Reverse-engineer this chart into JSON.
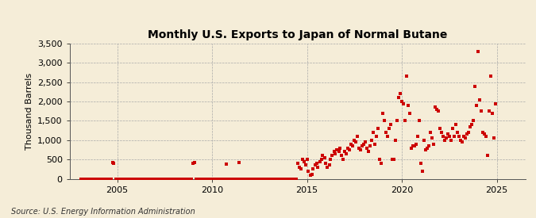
{
  "title": "Monthly U.S. Exports to Japan of Normal Butane",
  "ylabel": "Thousand Barrels",
  "source": "Source: U.S. Energy Information Administration",
  "background_color": "#f5edd8",
  "dot_color": "#cc0000",
  "xlim": [
    2002.5,
    2026.5
  ],
  "ylim": [
    0,
    3500
  ],
  "yticks": [
    0,
    500,
    1000,
    1500,
    2000,
    2500,
    3000,
    3500
  ],
  "xticks": [
    2005,
    2010,
    2015,
    2020,
    2025
  ],
  "data": [
    [
      2003.08,
      0
    ],
    [
      2003.17,
      0
    ],
    [
      2003.25,
      0
    ],
    [
      2003.33,
      0
    ],
    [
      2003.42,
      0
    ],
    [
      2003.5,
      0
    ],
    [
      2003.58,
      0
    ],
    [
      2003.67,
      0
    ],
    [
      2003.75,
      0
    ],
    [
      2003.83,
      0
    ],
    [
      2003.92,
      0
    ],
    [
      2004.0,
      0
    ],
    [
      2004.08,
      0
    ],
    [
      2004.17,
      0
    ],
    [
      2004.25,
      0
    ],
    [
      2004.33,
      0
    ],
    [
      2004.42,
      0
    ],
    [
      2004.5,
      0
    ],
    [
      2004.58,
      0
    ],
    [
      2004.67,
      0
    ],
    [
      2004.75,
      420
    ],
    [
      2004.83,
      400
    ],
    [
      2004.92,
      0
    ],
    [
      2005.0,
      0
    ],
    [
      2005.08,
      0
    ],
    [
      2005.17,
      0
    ],
    [
      2005.25,
      0
    ],
    [
      2005.33,
      0
    ],
    [
      2005.42,
      0
    ],
    [
      2005.5,
      0
    ],
    [
      2005.58,
      0
    ],
    [
      2005.67,
      0
    ],
    [
      2005.75,
      0
    ],
    [
      2005.83,
      0
    ],
    [
      2005.92,
      0
    ],
    [
      2006.0,
      0
    ],
    [
      2006.08,
      0
    ],
    [
      2006.17,
      0
    ],
    [
      2006.25,
      0
    ],
    [
      2006.33,
      0
    ],
    [
      2006.42,
      0
    ],
    [
      2006.5,
      0
    ],
    [
      2006.58,
      0
    ],
    [
      2006.67,
      0
    ],
    [
      2006.75,
      0
    ],
    [
      2006.83,
      0
    ],
    [
      2006.92,
      0
    ],
    [
      2007.0,
      0
    ],
    [
      2007.08,
      0
    ],
    [
      2007.17,
      0
    ],
    [
      2007.25,
      0
    ],
    [
      2007.33,
      0
    ],
    [
      2007.42,
      0
    ],
    [
      2007.5,
      0
    ],
    [
      2007.58,
      0
    ],
    [
      2007.67,
      0
    ],
    [
      2007.75,
      0
    ],
    [
      2007.83,
      0
    ],
    [
      2007.92,
      0
    ],
    [
      2008.0,
      0
    ],
    [
      2008.08,
      0
    ],
    [
      2008.17,
      0
    ],
    [
      2008.25,
      0
    ],
    [
      2008.33,
      0
    ],
    [
      2008.42,
      0
    ],
    [
      2008.5,
      0
    ],
    [
      2008.58,
      0
    ],
    [
      2008.67,
      0
    ],
    [
      2008.75,
      0
    ],
    [
      2008.83,
      0
    ],
    [
      2008.92,
      0
    ],
    [
      2009.0,
      400
    ],
    [
      2009.08,
      420
    ],
    [
      2009.17,
      0
    ],
    [
      2009.25,
      0
    ],
    [
      2009.33,
      0
    ],
    [
      2009.42,
      0
    ],
    [
      2009.5,
      0
    ],
    [
      2009.58,
      0
    ],
    [
      2009.67,
      0
    ],
    [
      2009.75,
      0
    ],
    [
      2009.83,
      0
    ],
    [
      2009.92,
      0
    ],
    [
      2010.0,
      0
    ],
    [
      2010.08,
      0
    ],
    [
      2010.17,
      0
    ],
    [
      2010.25,
      0
    ],
    [
      2010.33,
      0
    ],
    [
      2010.42,
      0
    ],
    [
      2010.5,
      0
    ],
    [
      2010.58,
      0
    ],
    [
      2010.67,
      0
    ],
    [
      2010.75,
      380
    ],
    [
      2010.83,
      0
    ],
    [
      2010.92,
      0
    ],
    [
      2011.0,
      0
    ],
    [
      2011.08,
      0
    ],
    [
      2011.17,
      0
    ],
    [
      2011.25,
      0
    ],
    [
      2011.33,
      0
    ],
    [
      2011.42,
      420
    ],
    [
      2011.5,
      0
    ],
    [
      2011.58,
      0
    ],
    [
      2011.67,
      0
    ],
    [
      2011.75,
      0
    ],
    [
      2011.83,
      0
    ],
    [
      2011.92,
      0
    ],
    [
      2012.0,
      0
    ],
    [
      2012.08,
      0
    ],
    [
      2012.17,
      0
    ],
    [
      2012.25,
      0
    ],
    [
      2012.33,
      0
    ],
    [
      2012.42,
      0
    ],
    [
      2012.5,
      0
    ],
    [
      2012.58,
      0
    ],
    [
      2012.67,
      0
    ],
    [
      2012.75,
      0
    ],
    [
      2012.83,
      0
    ],
    [
      2012.92,
      0
    ],
    [
      2013.0,
      0
    ],
    [
      2013.08,
      0
    ],
    [
      2013.17,
      0
    ],
    [
      2013.25,
      0
    ],
    [
      2013.33,
      0
    ],
    [
      2013.42,
      0
    ],
    [
      2013.5,
      0
    ],
    [
      2013.58,
      0
    ],
    [
      2013.67,
      0
    ],
    [
      2013.75,
      0
    ],
    [
      2013.83,
      0
    ],
    [
      2013.92,
      0
    ],
    [
      2014.08,
      0
    ],
    [
      2014.17,
      0
    ],
    [
      2014.25,
      0
    ],
    [
      2014.33,
      0
    ],
    [
      2014.42,
      0
    ],
    [
      2014.5,
      400
    ],
    [
      2014.58,
      300
    ],
    [
      2014.67,
      250
    ],
    [
      2014.75,
      500
    ],
    [
      2014.83,
      450
    ],
    [
      2014.92,
      350
    ],
    [
      2015.0,
      500
    ],
    [
      2015.08,
      200
    ],
    [
      2015.17,
      100
    ],
    [
      2015.25,
      120
    ],
    [
      2015.33,
      250
    ],
    [
      2015.42,
      350
    ],
    [
      2015.5,
      400
    ],
    [
      2015.58,
      300
    ],
    [
      2015.67,
      450
    ],
    [
      2015.75,
      500
    ],
    [
      2015.83,
      600
    ],
    [
      2015.92,
      550
    ],
    [
      2016.0,
      400
    ],
    [
      2016.08,
      300
    ],
    [
      2016.17,
      350
    ],
    [
      2016.25,
      500
    ],
    [
      2016.33,
      600
    ],
    [
      2016.42,
      700
    ],
    [
      2016.5,
      650
    ],
    [
      2016.58,
      750
    ],
    [
      2016.67,
      700
    ],
    [
      2016.75,
      800
    ],
    [
      2016.83,
      600
    ],
    [
      2016.92,
      500
    ],
    [
      2017.0,
      700
    ],
    [
      2017.08,
      650
    ],
    [
      2017.17,
      800
    ],
    [
      2017.25,
      750
    ],
    [
      2017.33,
      900
    ],
    [
      2017.42,
      850
    ],
    [
      2017.5,
      1000
    ],
    [
      2017.58,
      950
    ],
    [
      2017.67,
      1100
    ],
    [
      2017.75,
      800
    ],
    [
      2017.83,
      750
    ],
    [
      2017.92,
      850
    ],
    [
      2018.0,
      900
    ],
    [
      2018.08,
      950
    ],
    [
      2018.17,
      800
    ],
    [
      2018.25,
      700
    ],
    [
      2018.33,
      850
    ],
    [
      2018.42,
      1000
    ],
    [
      2018.5,
      1200
    ],
    [
      2018.58,
      900
    ],
    [
      2018.67,
      1100
    ],
    [
      2018.75,
      1300
    ],
    [
      2018.83,
      500
    ],
    [
      2018.92,
      400
    ],
    [
      2019.0,
      1700
    ],
    [
      2019.08,
      1500
    ],
    [
      2019.17,
      1200
    ],
    [
      2019.25,
      1100
    ],
    [
      2019.33,
      1300
    ],
    [
      2019.42,
      1400
    ],
    [
      2019.5,
      500
    ],
    [
      2019.58,
      500
    ],
    [
      2019.67,
      1000
    ],
    [
      2019.75,
      1500
    ],
    [
      2019.83,
      2100
    ],
    [
      2019.92,
      2200
    ],
    [
      2020.0,
      2000
    ],
    [
      2020.08,
      1950
    ],
    [
      2020.17,
      1500
    ],
    [
      2020.25,
      2650
    ],
    [
      2020.33,
      1900
    ],
    [
      2020.42,
      1700
    ],
    [
      2020.5,
      800
    ],
    [
      2020.58,
      850
    ],
    [
      2020.67,
      850
    ],
    [
      2020.75,
      900
    ],
    [
      2020.83,
      1100
    ],
    [
      2020.92,
      1500
    ],
    [
      2021.0,
      400
    ],
    [
      2021.08,
      200
    ],
    [
      2021.17,
      1000
    ],
    [
      2021.25,
      750
    ],
    [
      2021.33,
      800
    ],
    [
      2021.42,
      850
    ],
    [
      2021.5,
      1200
    ],
    [
      2021.58,
      1050
    ],
    [
      2021.67,
      900
    ],
    [
      2021.75,
      1850
    ],
    [
      2021.83,
      1800
    ],
    [
      2021.92,
      1750
    ],
    [
      2022.0,
      1300
    ],
    [
      2022.08,
      1200
    ],
    [
      2022.17,
      1100
    ],
    [
      2022.25,
      1000
    ],
    [
      2022.33,
      1050
    ],
    [
      2022.42,
      1150
    ],
    [
      2022.5,
      1100
    ],
    [
      2022.58,
      1000
    ],
    [
      2022.67,
      1300
    ],
    [
      2022.75,
      1100
    ],
    [
      2022.83,
      1400
    ],
    [
      2022.92,
      1200
    ],
    [
      2023.0,
      1100
    ],
    [
      2023.08,
      1000
    ],
    [
      2023.17,
      950
    ],
    [
      2023.25,
      1100
    ],
    [
      2023.33,
      1050
    ],
    [
      2023.42,
      1150
    ],
    [
      2023.5,
      1200
    ],
    [
      2023.58,
      1350
    ],
    [
      2023.67,
      1400
    ],
    [
      2023.75,
      1500
    ],
    [
      2023.83,
      2400
    ],
    [
      2023.92,
      1900
    ],
    [
      2024.0,
      3300
    ],
    [
      2024.08,
      2050
    ],
    [
      2024.17,
      1750
    ],
    [
      2024.25,
      1200
    ],
    [
      2024.33,
      1150
    ],
    [
      2024.42,
      1100
    ],
    [
      2024.5,
      600
    ],
    [
      2024.58,
      1750
    ],
    [
      2024.67,
      2650
    ],
    [
      2024.75,
      1700
    ],
    [
      2024.83,
      1050
    ],
    [
      2024.92,
      1950
    ]
  ]
}
